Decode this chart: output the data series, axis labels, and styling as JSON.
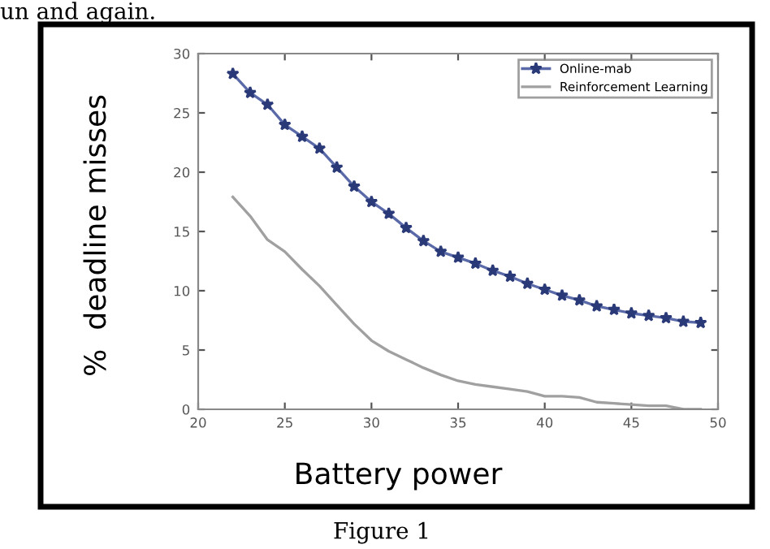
{
  "chart_data": {
    "type": "line",
    "xlabel": "Battery power",
    "ylabel": "%  deadline misses",
    "annotations": [
      "un and again.",
      "Figure 1"
    ],
    "x": [
      22,
      23,
      24,
      25,
      26,
      27,
      28,
      29,
      30,
      31,
      32,
      33,
      34,
      35,
      36,
      37,
      38,
      39,
      40,
      41,
      42,
      43,
      44,
      45,
      46,
      47,
      48,
      49
    ],
    "series": [
      {
        "name": "Online-mab",
        "color": "#5a6aa8",
        "marker": "star",
        "values": [
          28.3,
          26.7,
          25.7,
          24.0,
          23.0,
          22.0,
          20.4,
          18.8,
          17.5,
          16.5,
          15.3,
          14.2,
          13.3,
          12.8,
          12.3,
          11.7,
          11.2,
          10.6,
          10.1,
          9.6,
          9.2,
          8.7,
          8.4,
          8.1,
          7.9,
          7.7,
          7.4,
          7.3
        ]
      },
      {
        "name": "Reinforcement Learning",
        "color": "#a0a0a0",
        "values": [
          17.9,
          16.3,
          14.3,
          13.3,
          11.8,
          10.4,
          8.8,
          7.2,
          5.8,
          4.9,
          4.2,
          3.5,
          2.9,
          2.4,
          2.1,
          1.9,
          1.7,
          1.5,
          1.1,
          1.1,
          1.0,
          0.6,
          0.5,
          0.4,
          0.3,
          0.3,
          0.0,
          0.0
        ]
      }
    ],
    "xlim": [
      20,
      50
    ],
    "xticks": [
      20,
      25,
      30,
      35,
      40,
      45,
      50
    ],
    "ylim": [
      0,
      30
    ],
    "yticks": [
      0,
      5,
      10,
      15,
      20,
      25,
      30
    ],
    "grid": false,
    "legend": "top right",
    "line_style": "solid"
  }
}
